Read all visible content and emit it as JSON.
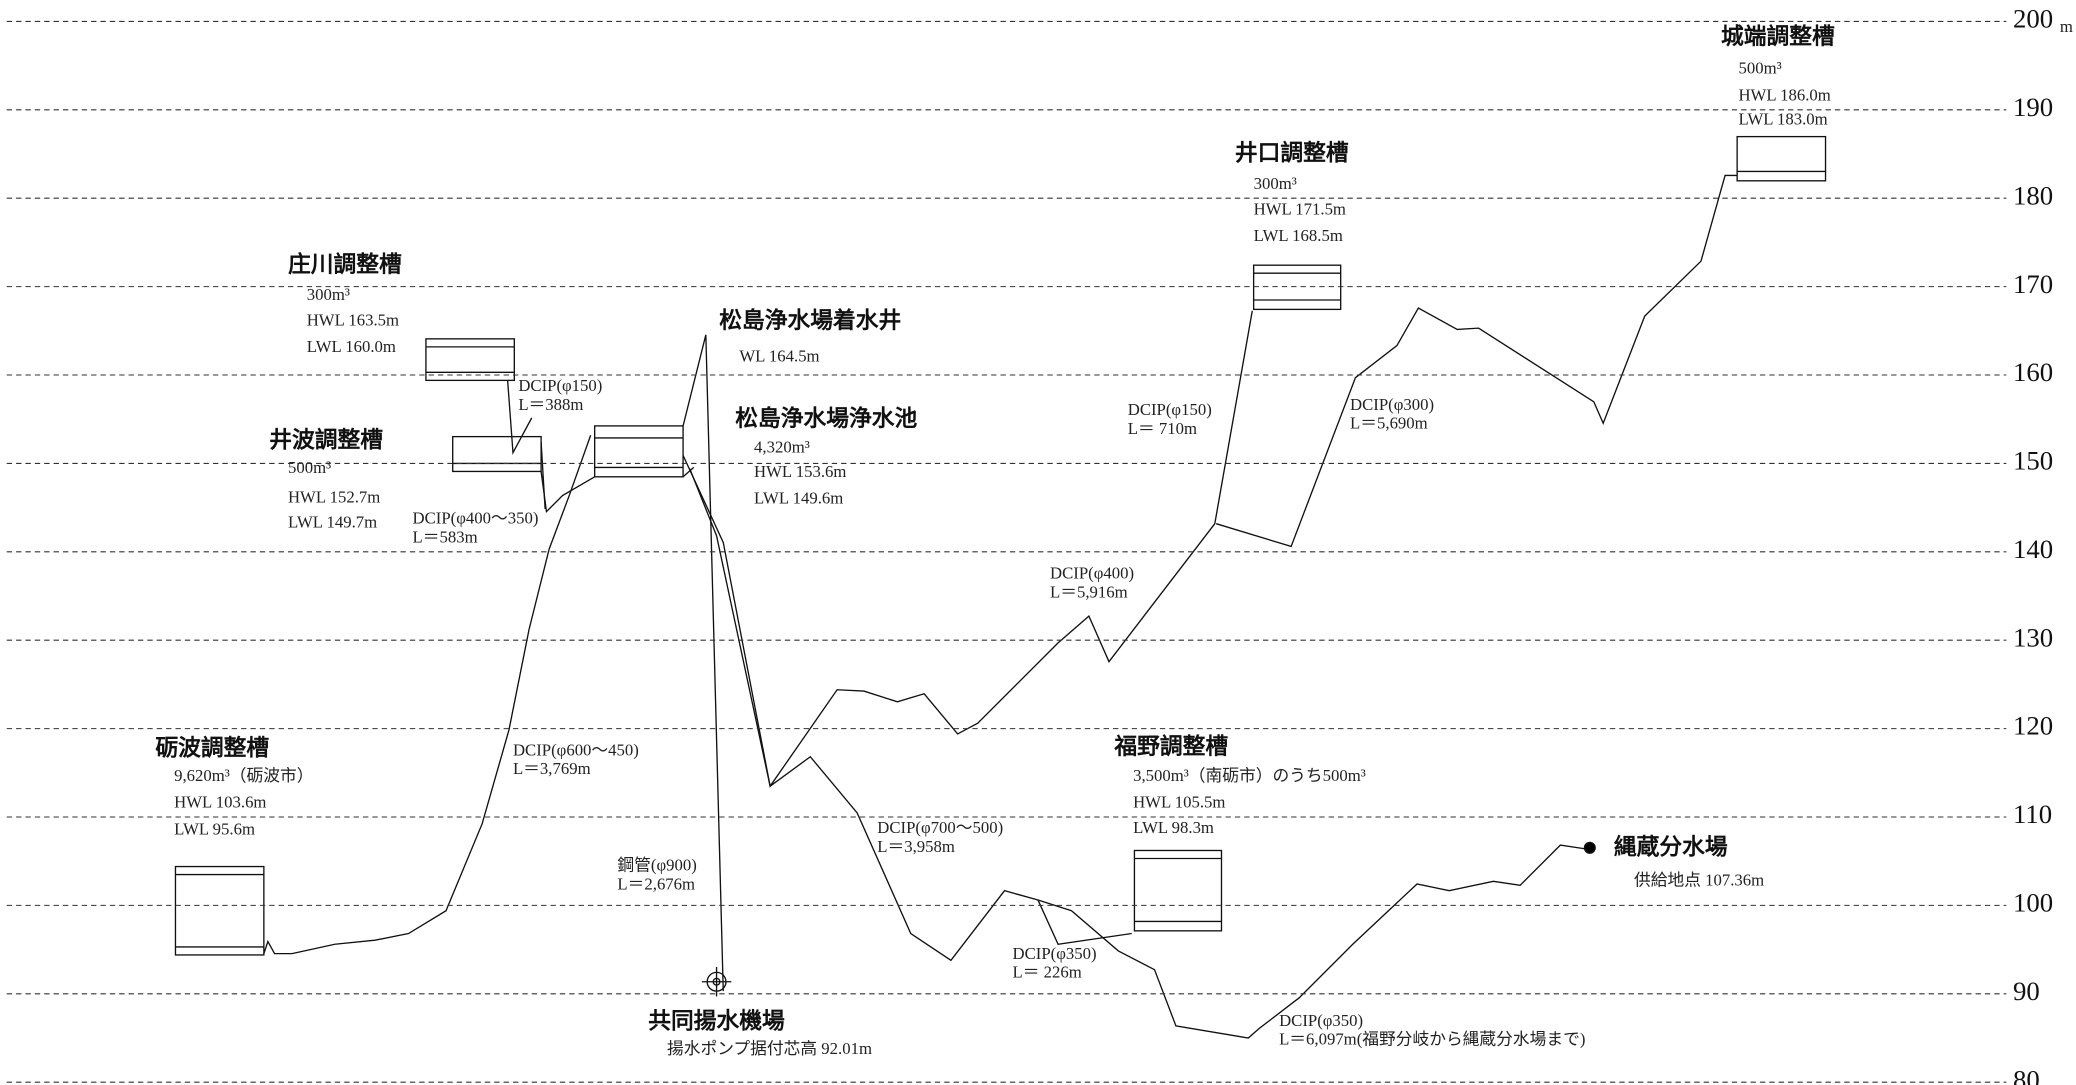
{
  "axis": {
    "unit": "m",
    "ylim": [
      80,
      200
    ],
    "yticks": [
      80,
      90,
      100,
      110,
      120,
      130,
      140,
      150,
      160,
      170,
      180,
      190,
      200
    ]
  },
  "facilities": [
    {
      "name": "城端調整槽",
      "details": [
        "500m³",
        "HWL 186.0m",
        "LWL 183.0m"
      ]
    },
    {
      "name": "井口調整槽",
      "details": [
        "300m³",
        "HWL 171.5m",
        "LWL 168.5m"
      ]
    },
    {
      "name": "庄川調整槽",
      "details": [
        "300m³",
        "HWL 163.5m",
        "LWL 160.0m"
      ]
    },
    {
      "name": "松島浄水場着水井",
      "details": [
        "WL 164.5m"
      ]
    },
    {
      "name": "松島浄水場浄水池",
      "details": [
        "4,320m³",
        "HWL 153.6m",
        "LWL 149.6m"
      ]
    },
    {
      "name": "井波調整槽",
      "details": [
        "500m³",
        "HWL 152.7m",
        "LWL 149.7m"
      ]
    },
    {
      "name": "砺波調整槽",
      "details": [
        "9,620m³（砺波市）",
        "HWL 103.6m",
        "LWL  95.6m"
      ]
    },
    {
      "name": "福野調整槽",
      "details": [
        "3,500m³（南砺市）のうち500m³",
        "HWL 105.5m",
        "LWL  98.3m"
      ]
    },
    {
      "name": "縄蔵分水場",
      "details": [
        "供給地点 107.36m"
      ]
    },
    {
      "name": "共同揚水機場",
      "details": [
        "揚水ポンプ据付芯高 92.01m"
      ]
    }
  ],
  "pipes": [
    {
      "lines": [
        "DCIP(φ150)",
        "L＝388m"
      ]
    },
    {
      "lines": [
        "DCIP(φ400～350)",
        "L＝583m"
      ]
    },
    {
      "lines": [
        "DCIP(φ150)",
        "L＝ 710m"
      ]
    },
    {
      "lines": [
        "DCIP(φ300)",
        "L＝5,690m"
      ]
    },
    {
      "lines": [
        "DCIP(φ400)",
        "L＝5,916m"
      ]
    },
    {
      "lines": [
        "DCIP(φ600～450)",
        "L＝3,769m"
      ]
    },
    {
      "lines": [
        "DCIP(φ700～500)",
        "L＝3,958m"
      ]
    },
    {
      "lines": [
        "鋼管(φ900)",
        "L＝2,676m"
      ]
    },
    {
      "lines": [
        "DCIP(φ350)",
        "L＝ 226m"
      ]
    },
    {
      "lines": [
        "DCIP(φ350)",
        "L＝6,097m(福野分岐から縄蔵分水場まで)"
      ]
    }
  ]
}
